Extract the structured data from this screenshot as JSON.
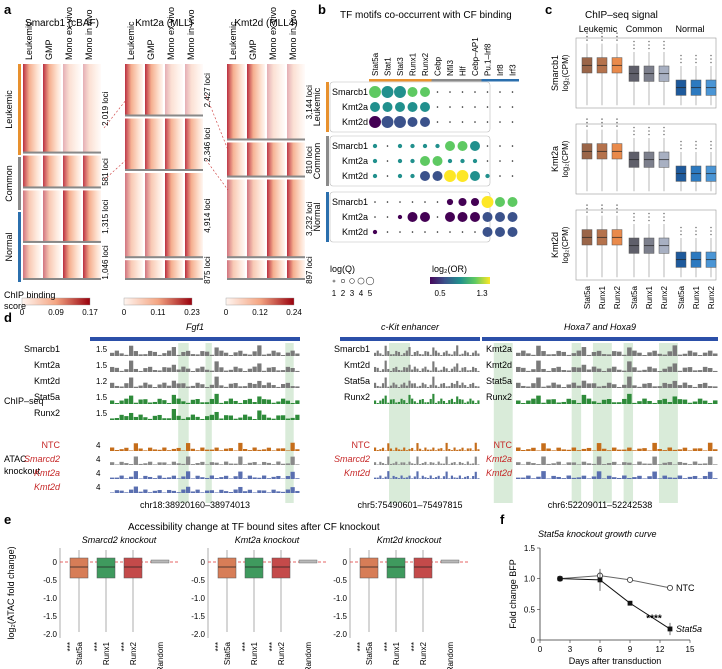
{
  "panels": {
    "a": "a",
    "b": "b",
    "c": "c",
    "d": "d",
    "e": "e",
    "f": "f"
  },
  "a": {
    "heatmaps": [
      {
        "title": "Smarcb1 (cBAF)",
        "cols": [
          "Leukemic",
          "GMP",
          "Mono ex vivo",
          "Mono in vivo"
        ],
        "loci": [
          "2,019 loci",
          "581 loci",
          "1,315 loci",
          "1,046 loci"
        ],
        "scale": {
          "ticks": [
            "0",
            "0.09",
            "0.17"
          ]
        }
      },
      {
        "title": "Kmt2a (MLL)",
        "cols": [
          "Leukemic",
          "GMP",
          "Mono ex vivo",
          "Mono in vivo"
        ],
        "loci": [
          "2,427 loci",
          "2,346 loci",
          "4,914 loci",
          "875 loci"
        ],
        "scale": {
          "ticks": [
            "0",
            "0.11",
            "0.23"
          ]
        }
      },
      {
        "title": "Kmt2d (MLL4)",
        "cols": [
          "Leukemic",
          "GMP",
          "Mono ex vivo",
          "Mono in vivo"
        ],
        "loci": [
          "3,144 loci",
          "810 loci",
          "3,232 loci",
          "897 loci"
        ],
        "scale": {
          "ticks": [
            "0",
            "0.12",
            "0.24"
          ]
        }
      }
    ],
    "groups": [
      "Leukemic",
      "Common",
      "Normal"
    ],
    "colorbar_label": [
      "ChIP binding",
      "score"
    ]
  },
  "b": {
    "title": "TF motifs co-occurrent with CF binding",
    "motifs": [
      "Stat5a",
      "Stat1",
      "Stat3",
      "Runx1",
      "Runx2",
      "Cebp",
      "Nfil3",
      "Hlf",
      "Cebp–AP1",
      "Pu.1–Irf8",
      "Irf8",
      "Irf3"
    ],
    "rows": [
      "Smarcb1",
      "Kmt2a",
      "Kmt2d"
    ],
    "groups": [
      "Leukemic",
      "Common",
      "Normal"
    ],
    "legend_q": {
      "label": "log(Q)",
      "ticks": [
        "1",
        "2",
        "3",
        "4",
        "5"
      ]
    },
    "legend_or": {
      "label": "log₂(OR)",
      "ticks": [
        "0.5",
        "1.3"
      ],
      "colors": [
        "#46085c",
        "#3b528b",
        "#21908d",
        "#5ec962",
        "#fde725"
      ]
    }
  },
  "c": {
    "title": "ChIP–seq signal",
    "groups": [
      "Leukemic",
      "Common",
      "Normal"
    ],
    "ylabels": [
      "Smarcb1",
      "Kmt2a",
      "Kmt2d"
    ],
    "yunit": "log₂(CPM)",
    "xticks": [
      "Stat5a",
      "Runx1",
      "Runx2",
      "Stat5a",
      "Runx1",
      "Runx2",
      "Stat5a",
      "Runx1",
      "Runx2"
    ]
  },
  "d": {
    "tracks": [
      {
        "gene": "Fgf1",
        "coord": "chr18:38920160–38974013",
        "chip_labels": [
          "Smarcb1",
          "Kmt2a",
          "Kmt2d",
          "Stat5a",
          "Runx2"
        ],
        "chip_scale": [
          "1.5",
          "1.5",
          "1.2",
          "1.5",
          "1.5"
        ],
        "atac_labels": [
          "NTC",
          "Smarcd2",
          "Kmt2a",
          "Kmt2d"
        ],
        "atac_scale": [
          "4",
          "4",
          "4",
          "4"
        ]
      },
      {
        "gene": "c-Kit enhancer",
        "coord": "chr5:75490601–75497815",
        "chip_labels": [
          "Smarcb1",
          "Kmt2d",
          "Stat5a",
          "Runx2"
        ],
        "atac_labels": [
          "NTC",
          "Smarcd2",
          "Kmt2d"
        ]
      },
      {
        "gene": "Hoxa7 and Hoxa9",
        "coord": "chr6:52209011–52242538",
        "chip_labels": [
          "Kmt2a",
          "Kmt2d",
          "Stat5a",
          "Runx2"
        ],
        "atac_labels": [
          "NTC",
          "Kmt2a",
          "Kmt2d"
        ]
      }
    ],
    "side_labels": [
      "ChIP–seq",
      "ATAC knockout"
    ]
  },
  "e": {
    "title": "Accessibility change at TF bound sites after CF knockout",
    "ylabel": "log₂(ATAC fold change)",
    "yticks": [
      "0",
      "-0.5",
      "-1.0",
      "-1.5",
      "-2.0"
    ],
    "subpanels": [
      {
        "title": "Smarcd2 knockout",
        "x": [
          "Stat5a",
          "Runx1",
          "Runx2",
          "Random"
        ],
        "stars": [
          "***",
          "***",
          "***",
          ""
        ]
      },
      {
        "title": "Kmt2a knockout",
        "x": [
          "Stat5a",
          "Runx1",
          "Runx2",
          "Random"
        ],
        "stars": [
          "***",
          "***",
          "***",
          ""
        ]
      },
      {
        "title": "Kmt2d knockout",
        "x": [
          "Stat5a",
          "Runx1",
          "Runx2",
          "Random"
        ],
        "stars": [
          "***",
          "***",
          "***",
          ""
        ]
      }
    ]
  },
  "f": {
    "title": "Stat5a knockout growth curve",
    "xlabel": "Days after transduction",
    "ylabel": "Fold change BFP",
    "chart_data": {
      "type": "line",
      "title": "Stat5a knockout growth curve",
      "xlabel": "Days after transduction",
      "ylabel": "Fold change BFP",
      "xlim": [
        0,
        15
      ],
      "ylim": [
        0,
        1.5
      ],
      "xticks": [
        0,
        3,
        6,
        9,
        12,
        15
      ],
      "yticks": [
        0,
        0.5,
        1.0,
        1.5
      ],
      "series": [
        {
          "name": "NTC",
          "x": [
            2,
            6,
            9,
            13
          ],
          "y": [
            1.0,
            1.05,
            0.98,
            0.85
          ],
          "err": [
            0.02,
            0.05,
            0.03,
            0.04
          ],
          "style": "open"
        },
        {
          "name": "Stat5a",
          "x": [
            2,
            6,
            9,
            13
          ],
          "y": [
            1.0,
            0.98,
            0.6,
            0.18
          ],
          "err": [
            0.02,
            0.18,
            0.02,
            0.1
          ],
          "style": "filled"
        }
      ],
      "annotation": "****"
    },
    "ytick_labels": [
      "0",
      "0.5",
      "1.0",
      "1.5"
    ],
    "xtick_labels": [
      "0",
      "3",
      "6",
      "9",
      "12",
      "15"
    ]
  }
}
